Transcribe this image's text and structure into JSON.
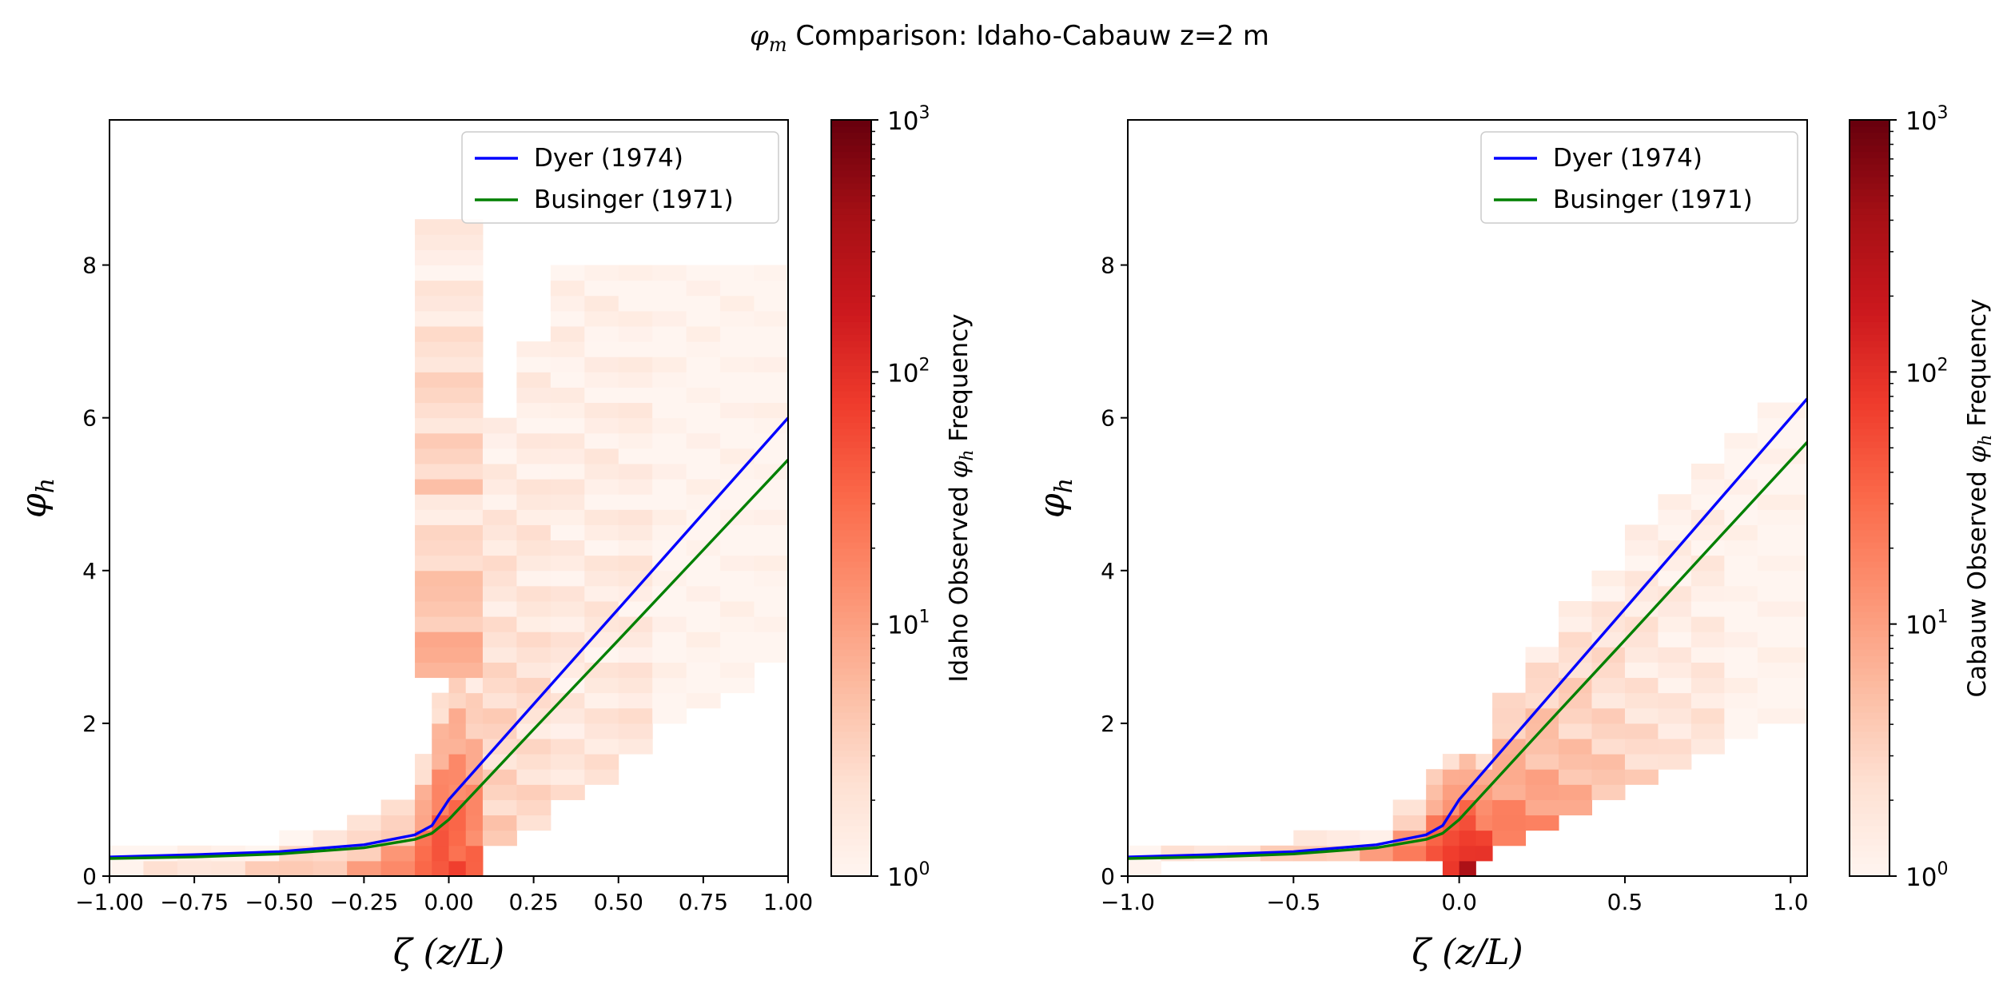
{
  "figure_title": {
    "symbol": "φ",
    "sub": "m",
    "text": " Comparison: Idaho-Cabauw z=2 m"
  },
  "colors": {
    "dyer": "#0000ff",
    "businger": "#008000",
    "cmap": [
      "#fff5f0",
      "#fee0d2",
      "#fcbba1",
      "#fc9272",
      "#fb6a4a",
      "#ef3b2c",
      "#cb181d",
      "#a50f15",
      "#67000d"
    ]
  },
  "chart_data": [
    {
      "type": "heatmap",
      "title": "",
      "xlabel": {
        "symbol": "ζ",
        "text": " (z/L)"
      },
      "ylabel": {
        "symbol": "φ",
        "sub": "h"
      },
      "xlim": [
        -1.0,
        1.0
      ],
      "ylim": [
        0,
        9.9
      ],
      "xticks": [
        -1.0,
        -0.75,
        -0.5,
        -0.25,
        0.0,
        0.25,
        0.5,
        0.75,
        1.0
      ],
      "xtick_labels": [
        "−1.00",
        "−0.75",
        "−0.50",
        "−0.25",
        "0.00",
        "0.25",
        "0.50",
        "0.75",
        "1.00"
      ],
      "yticks": [
        0,
        2,
        4,
        6,
        8
      ],
      "ytick_labels": [
        "0",
        "2",
        "4",
        "6",
        "8"
      ],
      "legend_position": "top-right",
      "legend": [
        "Dyer (1974)",
        "Businger (1971)"
      ],
      "series": [
        {
          "name": "Dyer (1974)",
          "x": [
            -1.0,
            -0.75,
            -0.5,
            -0.25,
            -0.1,
            -0.05,
            0.0,
            0.25,
            0.5,
            0.75,
            1.0
          ],
          "y": [
            0.25,
            0.28,
            0.32,
            0.41,
            0.54,
            0.66,
            1.0,
            2.25,
            3.5,
            4.75,
            6.0
          ]
        },
        {
          "name": "Businger (1971)",
          "x": [
            -1.0,
            -0.75,
            -0.5,
            -0.25,
            -0.1,
            -0.05,
            0.0,
            0.25,
            0.5,
            0.75,
            1.0
          ],
          "y": [
            0.23,
            0.25,
            0.29,
            0.37,
            0.48,
            0.56,
            0.74,
            1.92,
            3.09,
            4.27,
            5.45
          ]
        }
      ],
      "density": {
        "x_edges": [
          -1.0,
          -0.9,
          -0.8,
          -0.7,
          -0.6,
          -0.5,
          -0.4,
          -0.3,
          -0.2,
          -0.1,
          -0.05,
          0.0,
          0.05,
          0.1,
          0.2,
          0.3,
          0.4,
          0.5,
          0.6,
          0.7,
          0.8,
          0.9,
          1.0
        ],
        "y_bin": 0.2,
        "cells": [
          {
            "x0": -1.0,
            "x1": -0.9,
            "y0": 0.0,
            "y1": 0.4,
            "count": 2
          },
          {
            "x0": -0.9,
            "x1": -0.8,
            "y0": 0.0,
            "y1": 0.4,
            "count": 2
          },
          {
            "x0": -0.8,
            "x1": -0.7,
            "y0": 0.0,
            "y1": 0.4,
            "count": 2
          },
          {
            "x0": -0.7,
            "x1": -0.6,
            "y0": 0.0,
            "y1": 0.4,
            "count": 3
          },
          {
            "x0": -0.6,
            "x1": -0.5,
            "y0": 0.0,
            "y1": 0.4,
            "count": 3
          },
          {
            "x0": -0.5,
            "x1": -0.4,
            "y0": 0.0,
            "y1": 0.6,
            "count": 4
          },
          {
            "x0": -0.4,
            "x1": -0.3,
            "y0": 0.0,
            "y1": 0.6,
            "count": 5
          },
          {
            "x0": -0.3,
            "x1": -0.2,
            "y0": 0.0,
            "y1": 0.8,
            "count": 8
          },
          {
            "x0": -0.2,
            "x1": -0.1,
            "y0": 0.0,
            "y1": 1.0,
            "count": 15
          },
          {
            "x0": -0.1,
            "x1": -0.05,
            "y0": 0.0,
            "y1": 1.6,
            "count": 40
          },
          {
            "x0": -0.05,
            "x1": 0.0,
            "y0": 0.0,
            "y1": 2.4,
            "count": 80
          },
          {
            "x0": 0.0,
            "x1": 0.05,
            "y0": 0.0,
            "y1": 3.0,
            "count": 60
          },
          {
            "x0": 0.05,
            "x1": 0.1,
            "y0": 0.0,
            "y1": 2.6,
            "count": 40
          },
          {
            "x0": -0.1,
            "x1": 0.1,
            "y0": 2.6,
            "y1": 5.0,
            "count": 10
          },
          {
            "x0": -0.1,
            "x1": 0.1,
            "y0": 5.0,
            "y1": 8.5,
            "count": 4
          },
          {
            "x0": 0.1,
            "x1": 0.2,
            "y0": 0.4,
            "y1": 6.0,
            "count": 4
          },
          {
            "x0": 0.2,
            "x1": 0.3,
            "y0": 0.6,
            "y1": 7.0,
            "count": 3
          },
          {
            "x0": 0.3,
            "x1": 0.4,
            "y0": 1.0,
            "y1": 8.0,
            "count": 2
          },
          {
            "x0": 0.4,
            "x1": 0.5,
            "y0": 1.2,
            "y1": 8.0,
            "count": 2
          },
          {
            "x0": 0.5,
            "x1": 0.6,
            "y0": 1.6,
            "y1": 8.0,
            "count": 2
          },
          {
            "x0": 0.6,
            "x1": 0.7,
            "y0": 2.0,
            "y1": 8.0,
            "count": 1
          },
          {
            "x0": 0.7,
            "x1": 0.8,
            "y0": 2.2,
            "y1": 8.0,
            "count": 1
          },
          {
            "x0": 0.8,
            "x1": 0.9,
            "y0": 2.4,
            "y1": 8.0,
            "count": 1
          },
          {
            "x0": 0.9,
            "x1": 1.0,
            "y0": 2.8,
            "y1": 8.0,
            "count": 1
          }
        ]
      },
      "colorbar": {
        "label": {
          "pre": "Idaho Observed ",
          "symbol": "φ",
          "sub": "h",
          "post": " Frequency"
        },
        "scale": "log",
        "range": [
          1,
          1000
        ],
        "ticks": [
          {
            "base": "10",
            "exp": "0"
          },
          {
            "base": "10",
            "exp": "1"
          },
          {
            "base": "10",
            "exp": "2"
          },
          {
            "base": "10",
            "exp": "3"
          }
        ]
      }
    },
    {
      "type": "heatmap",
      "title": "",
      "xlabel": {
        "symbol": "ζ",
        "text": " (z/L)"
      },
      "ylabel": {
        "symbol": "φ",
        "sub": "h"
      },
      "xlim": [
        -1.0,
        1.05
      ],
      "ylim": [
        0,
        9.9
      ],
      "xticks": [
        -1.0,
        -0.5,
        0.0,
        0.5,
        1.0
      ],
      "xtick_labels": [
        "−1.0",
        "−0.5",
        "0.0",
        "0.5",
        "1.0"
      ],
      "yticks": [
        0,
        2,
        4,
        6,
        8
      ],
      "ytick_labels": [
        "0",
        "2",
        "4",
        "6",
        "8"
      ],
      "legend_position": "top-right",
      "legend": [
        "Dyer (1974)",
        "Businger (1971)"
      ],
      "series": [
        {
          "name": "Dyer (1974)",
          "x": [
            -1.0,
            -0.75,
            -0.5,
            -0.25,
            -0.1,
            -0.05,
            0.0,
            0.25,
            0.5,
            0.75,
            1.05
          ],
          "y": [
            0.25,
            0.28,
            0.32,
            0.41,
            0.54,
            0.66,
            1.0,
            2.25,
            3.5,
            4.75,
            6.25
          ]
        },
        {
          "name": "Businger (1971)",
          "x": [
            -1.0,
            -0.75,
            -0.5,
            -0.25,
            -0.1,
            -0.05,
            0.0,
            0.25,
            0.5,
            0.75,
            1.05
          ],
          "y": [
            0.23,
            0.25,
            0.29,
            0.37,
            0.48,
            0.56,
            0.74,
            1.92,
            3.09,
            4.27,
            5.68
          ]
        }
      ],
      "density": {
        "x_edges": [
          -1.0,
          -0.9,
          -0.8,
          -0.7,
          -0.6,
          -0.5,
          -0.4,
          -0.3,
          -0.2,
          -0.1,
          -0.05,
          0.0,
          0.05,
          0.1,
          0.2,
          0.3,
          0.4,
          0.5,
          0.6,
          0.7,
          0.8,
          0.9,
          1.05
        ],
        "y_bin": 0.2,
        "cells": [
          {
            "x0": -1.0,
            "x1": -0.9,
            "y0": 0.0,
            "y1": 0.4,
            "count": 2
          },
          {
            "x0": -0.9,
            "x1": -0.8,
            "y0": 0.2,
            "y1": 0.4,
            "count": 2
          },
          {
            "x0": -0.8,
            "x1": -0.7,
            "y0": 0.2,
            "y1": 0.4,
            "count": 2
          },
          {
            "x0": -0.7,
            "x1": -0.6,
            "y0": 0.2,
            "y1": 0.4,
            "count": 3
          },
          {
            "x0": -0.6,
            "x1": -0.5,
            "y0": 0.2,
            "y1": 0.5,
            "count": 3
          },
          {
            "x0": -0.5,
            "x1": -0.4,
            "y0": 0.2,
            "y1": 0.6,
            "count": 4
          },
          {
            "x0": -0.4,
            "x1": -0.3,
            "y0": 0.2,
            "y1": 0.6,
            "count": 5
          },
          {
            "x0": -0.3,
            "x1": -0.2,
            "y0": 0.2,
            "y1": 0.7,
            "count": 8
          },
          {
            "x0": -0.2,
            "x1": -0.1,
            "y0": 0.2,
            "y1": 1.0,
            "count": 20
          },
          {
            "x0": -0.1,
            "x1": -0.05,
            "y0": 0.2,
            "y1": 1.4,
            "count": 60
          },
          {
            "x0": -0.05,
            "x1": 0.0,
            "y0": 0.0,
            "y1": 1.6,
            "count": 150
          },
          {
            "x0": 0.0,
            "x1": 0.05,
            "y0": 0.0,
            "y1": 1.6,
            "count": 300
          },
          {
            "x0": 0.05,
            "x1": 0.1,
            "y0": 0.2,
            "y1": 1.6,
            "count": 100
          },
          {
            "x0": 0.1,
            "x1": 0.2,
            "y0": 0.4,
            "y1": 2.4,
            "count": 30
          },
          {
            "x0": 0.2,
            "x1": 0.3,
            "y0": 0.6,
            "y1": 3.0,
            "count": 15
          },
          {
            "x0": 0.3,
            "x1": 0.4,
            "y0": 0.8,
            "y1": 3.6,
            "count": 8
          },
          {
            "x0": 0.4,
            "x1": 0.5,
            "y0": 1.0,
            "y1": 4.0,
            "count": 5
          },
          {
            "x0": 0.5,
            "x1": 0.6,
            "y0": 1.2,
            "y1": 4.6,
            "count": 3
          },
          {
            "x0": 0.6,
            "x1": 0.7,
            "y0": 1.4,
            "y1": 5.0,
            "count": 2
          },
          {
            "x0": 0.7,
            "x1": 0.8,
            "y0": 1.6,
            "y1": 5.4,
            "count": 2
          },
          {
            "x0": 0.8,
            "x1": 0.9,
            "y0": 1.8,
            "y1": 5.8,
            "count": 1
          },
          {
            "x0": 0.9,
            "x1": 1.05,
            "y0": 2.0,
            "y1": 6.2,
            "count": 1
          }
        ]
      },
      "colorbar": {
        "label": {
          "pre": "Cabauw Observed ",
          "symbol": "φ",
          "sub": "h",
          "post": " Frequency"
        },
        "scale": "log",
        "range": [
          1,
          1000
        ],
        "ticks": [
          {
            "base": "10",
            "exp": "0"
          },
          {
            "base": "10",
            "exp": "1"
          },
          {
            "base": "10",
            "exp": "2"
          },
          {
            "base": "10",
            "exp": "3"
          }
        ]
      }
    }
  ]
}
